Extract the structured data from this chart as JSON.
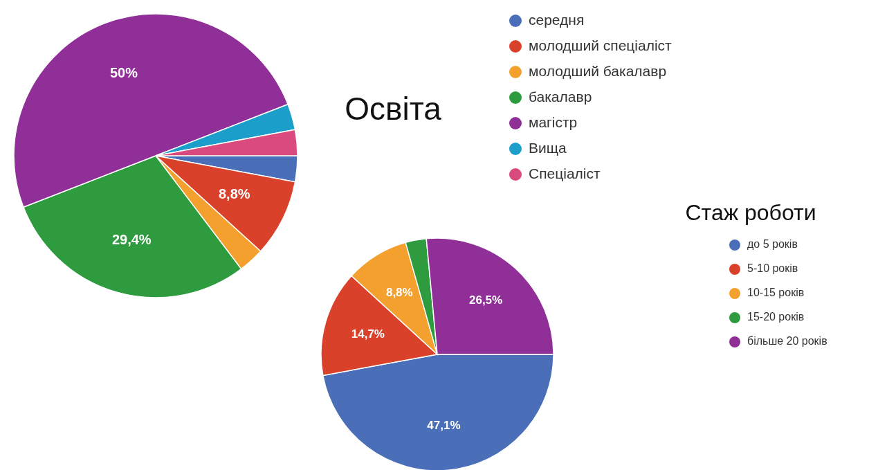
{
  "chart_data": [
    {
      "type": "pie",
      "title": "Освіта",
      "categories": [
        "середня",
        "молодший спеціаліст",
        "молодший бакалавр",
        "бакалавр",
        "магістр",
        "Вища",
        "Спеціаліст"
      ],
      "values": [
        2.95,
        8.8,
        2.95,
        29.4,
        50,
        2.95,
        2.95
      ],
      "colors": [
        "#4a6fb8",
        "#d9412a",
        "#f3a02f",
        "#2f9b3f",
        "#8f2f97",
        "#1b9fca",
        "#db4a7d"
      ],
      "value_labels": [
        null,
        "8,8%",
        null,
        "29,4%",
        "50%",
        null,
        null
      ],
      "legend": "right"
    },
    {
      "type": "pie",
      "title": "Стаж роботи",
      "categories": [
        "до 5 років",
        "5-10 років",
        "10-15 років",
        "15-20 років",
        "більше 20 років"
      ],
      "values": [
        47.1,
        14.7,
        8.8,
        2.9,
        26.5
      ],
      "colors": [
        "#4a6fb8",
        "#d9412a",
        "#f3a02f",
        "#2f9b3f",
        "#8f2f97"
      ],
      "value_labels": [
        "47,1%",
        "14,7%",
        "8,8%",
        null,
        "26,5%"
      ],
      "legend": "right"
    }
  ]
}
